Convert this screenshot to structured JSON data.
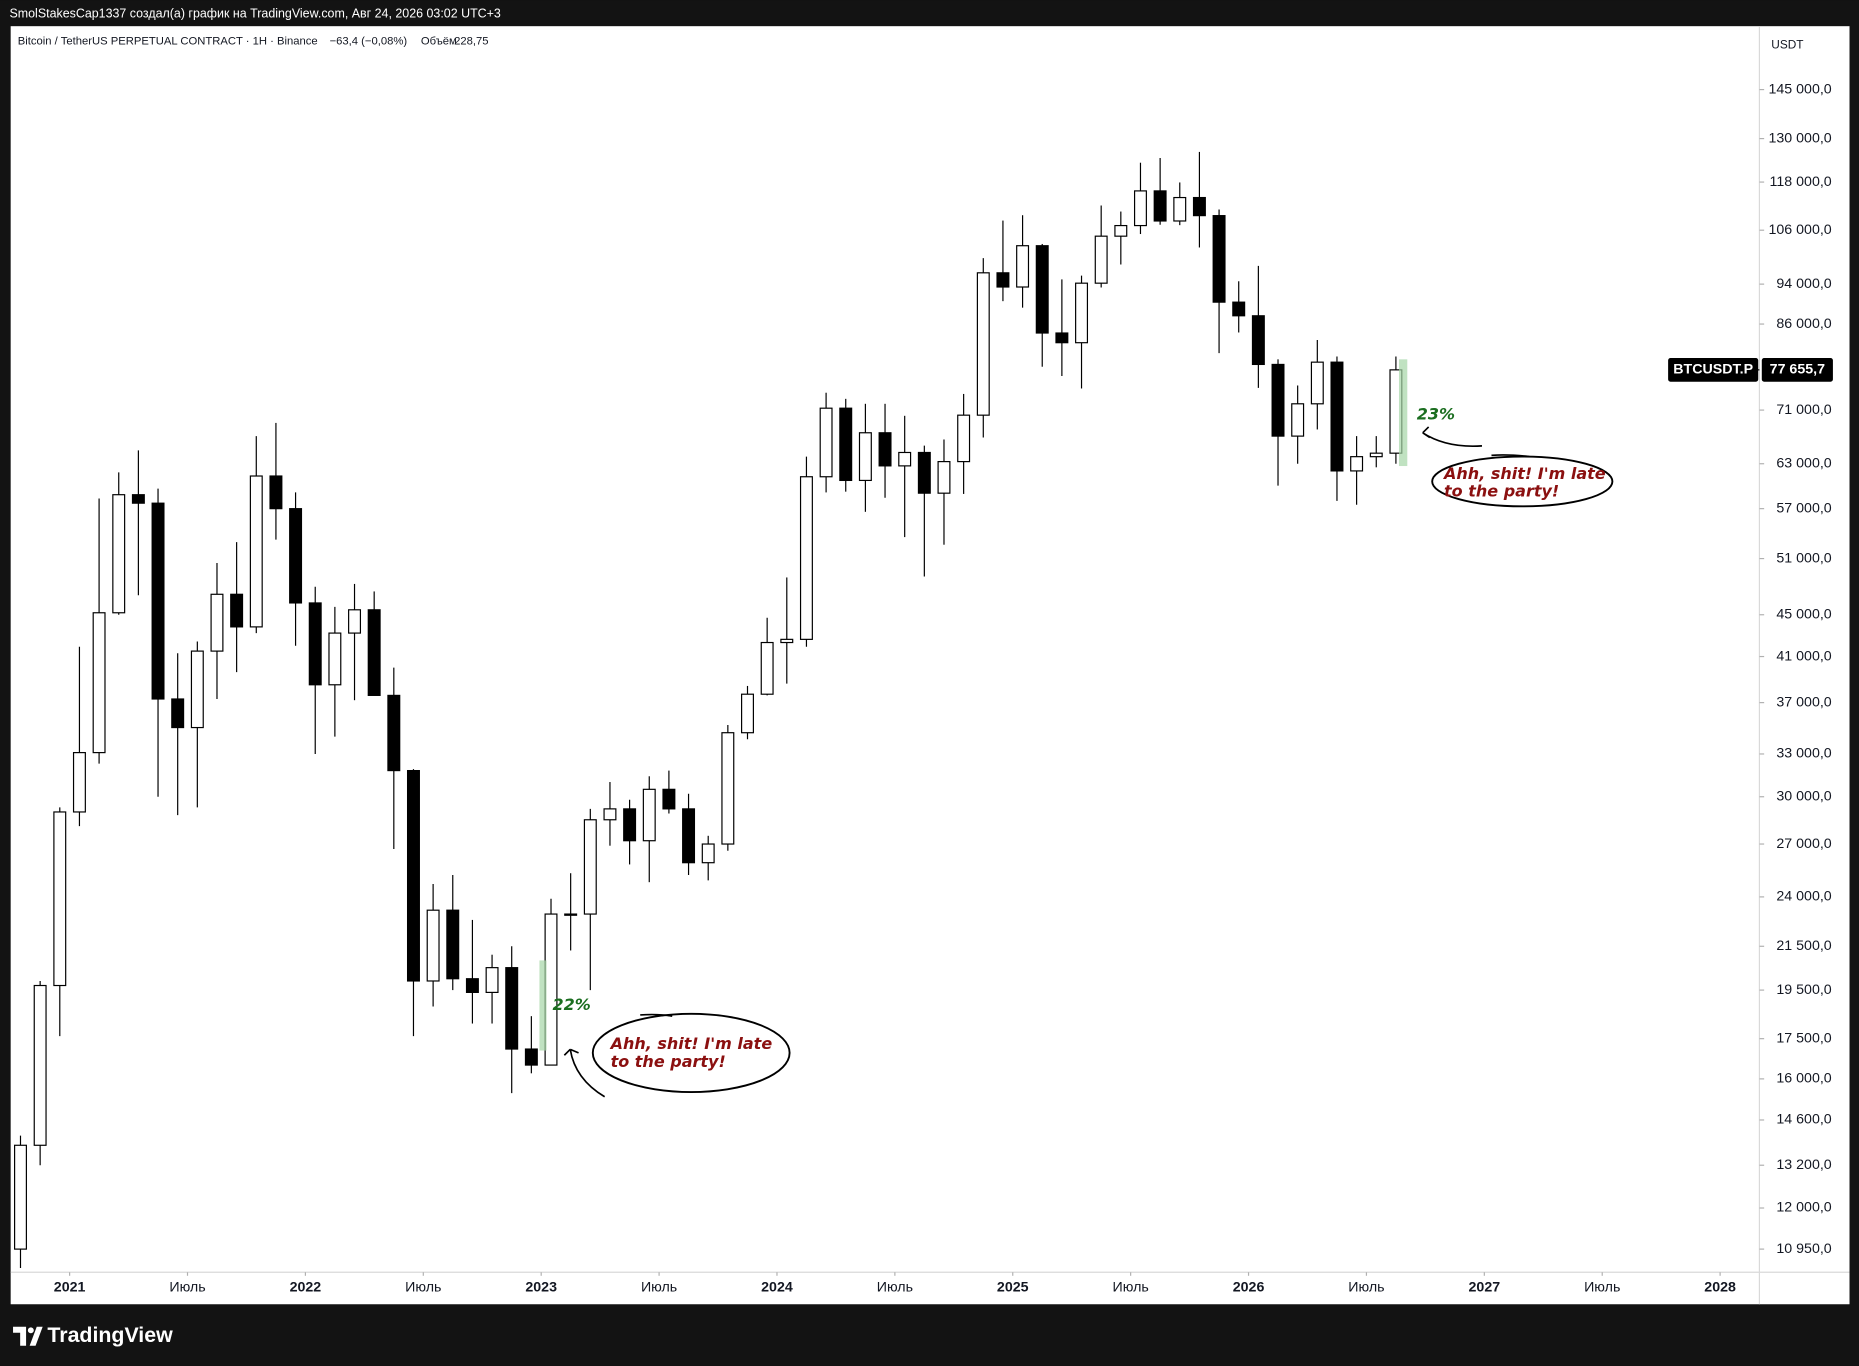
{
  "header": "SmolStakesCap1337 создал(а) график на TradingView.com, Авг 24, 2026 03:02 UTC+3",
  "footer_logo": "TradingView",
  "chart_data": {
    "type": "candlestick",
    "title": "Bitcoin / TetherUS PERPETUAL CONTRACT · 1H · Binance",
    "change": "−63,4 (−0,08%)",
    "volume_label": "Объём",
    "volume": "228,75",
    "currency": "USDT",
    "log_scale": true,
    "grid": false,
    "up_color": "#ffffff",
    "down_color": "#000000",
    "wick_color": "#000000",
    "xlim": [
      "2020-10",
      "2028-03"
    ],
    "xticks": [
      {
        "value": "2021-01",
        "label": "2021"
      },
      {
        "value": "2021-07",
        "label": "Июль"
      },
      {
        "value": "2022-01",
        "label": "2022"
      },
      {
        "value": "2022-07",
        "label": "Июль"
      },
      {
        "value": "2023-01",
        "label": "2023"
      },
      {
        "value": "2023-07",
        "label": "Июль"
      },
      {
        "value": "2024-01",
        "label": "2024"
      },
      {
        "value": "2024-07",
        "label": "Июль"
      },
      {
        "value": "2025-01",
        "label": "2025"
      },
      {
        "value": "2025-07",
        "label": "Июль"
      },
      {
        "value": "2026-01",
        "label": "2026"
      },
      {
        "value": "2026-07",
        "label": "Июль"
      },
      {
        "value": "2027-01",
        "label": "2027"
      },
      {
        "value": "2027-07",
        "label": "Июль"
      },
      {
        "value": "2028-01",
        "label": "2028"
      }
    ],
    "ylim": [
      10400,
      167000
    ],
    "yticks": [
      {
        "value": 145000,
        "label": "145 000,0"
      },
      {
        "value": 130000,
        "label": "130 000,0"
      },
      {
        "value": 118000,
        "label": "118 000,0"
      },
      {
        "value": 106000,
        "label": "106 000,0"
      },
      {
        "value": 94000,
        "label": "94 000,0"
      },
      {
        "value": 86000,
        "label": "86 000,0"
      },
      {
        "value": 71000,
        "label": "71 000,0"
      },
      {
        "value": 63000,
        "label": "63 000,0"
      },
      {
        "value": 57000,
        "label": "57 000,0"
      },
      {
        "value": 51000,
        "label": "51 000,0"
      },
      {
        "value": 45000,
        "label": "45 000,0"
      },
      {
        "value": 41000,
        "label": "41 000,0"
      },
      {
        "value": 37000,
        "label": "37 000,0"
      },
      {
        "value": 33000,
        "label": "33 000,0"
      },
      {
        "value": 30000,
        "label": "30 000,0"
      },
      {
        "value": 27000,
        "label": "27 000,0"
      },
      {
        "value": 24000,
        "label": "24 000,0"
      },
      {
        "value": 21500,
        "label": "21 500,0"
      },
      {
        "value": 19500,
        "label": "19 500,0"
      },
      {
        "value": 17500,
        "label": "17 500,0"
      },
      {
        "value": 16000,
        "label": "16 000,0"
      },
      {
        "value": 14600,
        "label": "14 600,0"
      },
      {
        "value": 13200,
        "label": "13 200,0"
      },
      {
        "value": 12000,
        "label": "12 000,0"
      },
      {
        "value": 10950,
        "label": "10 950,0"
      }
    ],
    "x": [
      "2020-10",
      "2020-11",
      "2020-12",
      "2021-01",
      "2021-02",
      "2021-03",
      "2021-04",
      "2021-05",
      "2021-06",
      "2021-07",
      "2021-08",
      "2021-09",
      "2021-10",
      "2021-11",
      "2021-12",
      "2022-01",
      "2022-02",
      "2022-03",
      "2022-04",
      "2022-05",
      "2022-06",
      "2022-07",
      "2022-08",
      "2022-09",
      "2022-10",
      "2022-11",
      "2022-12",
      "2023-01",
      "2023-02",
      "2023-03",
      "2023-04",
      "2023-05",
      "2023-06",
      "2023-07",
      "2023-08",
      "2023-09",
      "2023-10",
      "2023-11",
      "2023-12",
      "2024-01",
      "2024-02",
      "2024-03",
      "2024-04",
      "2024-05",
      "2024-06",
      "2024-07",
      "2024-08",
      "2024-09",
      "2024-10",
      "2024-11",
      "2024-12",
      "2025-01",
      "2025-02",
      "2025-03",
      "2025-04",
      "2025-05",
      "2025-06",
      "2025-07",
      "2025-08",
      "2025-09",
      "2025-10",
      "2025-11",
      "2025-12",
      "2026-01",
      "2026-02",
      "2026-03",
      "2026-04",
      "2026-05",
      "2026-06",
      "2026-07",
      "2026-08"
    ],
    "open": [
      10950,
      13800,
      19700,
      29000,
      33100,
      45200,
      58800,
      57700,
      37300,
      35000,
      41500,
      47100,
      43800,
      61300,
      57000,
      46200,
      38500,
      43200,
      45500,
      37600,
      31800,
      19900,
      23300,
      20000,
      19400,
      20500,
      17100,
      16500,
      23100,
      23100,
      28500,
      29200,
      27200,
      30500,
      29200,
      25900,
      27000,
      34600,
      37700,
      42300,
      42600,
      61200,
      71300,
      60700,
      67500,
      62700,
      64600,
      59000,
      63300,
      70200,
      96400,
      93400,
      102400,
      84300,
      82500,
      94200,
      104600,
      107100,
      115700,
      108200,
      114000,
      109500,
      90300,
      87600,
      78600,
      67000,
      72000,
      79000,
      62000,
      64000,
      64500
    ],
    "high": [
      14100,
      19900,
      29300,
      41900,
      58300,
      61800,
      64900,
      59600,
      41300,
      42400,
      50500,
      52900,
      67000,
      69000,
      59100,
      47900,
      45800,
      48200,
      47400,
      40000,
      31900,
      24700,
      25200,
      22800,
      21100,
      21500,
      18400,
      23900,
      25300,
      29200,
      31000,
      29800,
      31400,
      31800,
      30200,
      27500,
      35200,
      38400,
      44700,
      48900,
      64000,
      73800,
      72800,
      72000,
      72000,
      70100,
      65600,
      66500,
      73600,
      99600,
      108300,
      109600,
      102800,
      95000,
      95800,
      112000,
      110500,
      123200,
      124500,
      117900,
      126200,
      111000,
      94600,
      97900,
      79500,
      75000,
      83000,
      80000,
      67000,
      67000,
      80000
    ],
    "low": [
      10500,
      13200,
      17600,
      28100,
      32300,
      45000,
      47000,
      30000,
      28800,
      29300,
      37300,
      39600,
      43200,
      53200,
      42000,
      33000,
      34300,
      37200,
      37600,
      26700,
      17600,
      18800,
      19500,
      18100,
      18100,
      15500,
      16200,
      16500,
      21300,
      19500,
      26900,
      25800,
      24800,
      28900,
      25200,
      24900,
      26600,
      34100,
      37600,
      38600,
      41900,
      59100,
      59200,
      56600,
      58400,
      53500,
      49000,
      52600,
      58900,
      66800,
      90500,
      89200,
      78200,
      76600,
      74500,
      93300,
      98200,
      105100,
      107300,
      107200,
      102000,
      80600,
      84400,
      74600,
      60000,
      63000,
      68000,
      58000,
      57500,
      62500,
      63000
    ],
    "close": [
      13800,
      19700,
      29000,
      33100,
      45200,
      58800,
      57700,
      37300,
      35000,
      41500,
      47100,
      43800,
      61300,
      57000,
      46200,
      38500,
      43200,
      45500,
      37600,
      31800,
      19900,
      23300,
      20000,
      19400,
      20500,
      17100,
      16500,
      23100,
      23100,
      28500,
      29200,
      27200,
      30500,
      29200,
      25900,
      27000,
      34600,
      37700,
      42300,
      42600,
      61200,
      71300,
      60700,
      67500,
      62700,
      64600,
      59000,
      63300,
      70200,
      96400,
      93400,
      102400,
      84300,
      82500,
      94200,
      104600,
      107100,
      115700,
      108200,
      114000,
      109500,
      90300,
      87600,
      78600,
      67000,
      72000,
      79000,
      62000,
      64000,
      64500,
      77655.7
    ],
    "last_price": {
      "symbol": "BTCUSDT.P",
      "value": 77655.7,
      "label": "77 655,7"
    },
    "annotations": [
      {
        "percent": "22%",
        "bubble": [
          "Ahh, shit! I'm late",
          "to the party!"
        ]
      },
      {
        "percent": "23%",
        "bubble": [
          "Ahh, shit! I'm late",
          "to the party!"
        ]
      }
    ]
  }
}
